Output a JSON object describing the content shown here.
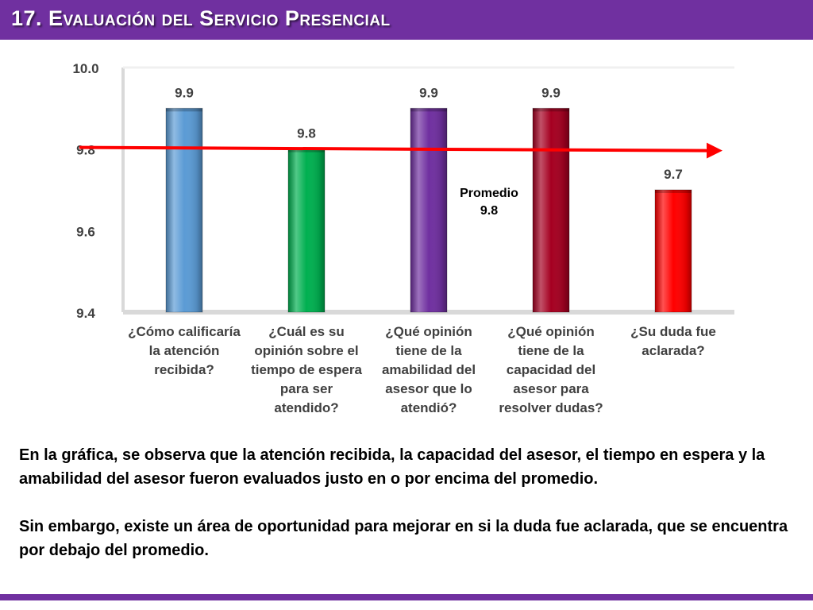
{
  "slide": {
    "title": "17. Evaluación del Servicio Presencial"
  },
  "chart_data": {
    "type": "bar",
    "title": "",
    "xlabel": "",
    "ylabel": "",
    "categories": [
      "¿Cómo calificaría la atención recibida?",
      "¿Cuál es su opinión sobre el tiempo de espera para ser atendido?",
      "¿Qué opinión tiene de la amabilidad del asesor que lo atendió?",
      "¿Qué opinión tiene de la capacidad del asesor para resolver dudas?",
      "¿Su duda fue aclarada?"
    ],
    "values": [
      9.9,
      9.8,
      9.9,
      9.9,
      9.7
    ],
    "data_labels": [
      "9.9",
      "9.8",
      "9.9",
      "9.9",
      "9.7"
    ],
    "bar_colors": [
      "#5b9bd5",
      "#00b050",
      "#7030a0",
      "#a50021",
      "#ff0000"
    ],
    "ylim": [
      9.4,
      10.0
    ],
    "yticks": [
      9.4,
      9.6,
      9.8,
      10.0
    ],
    "ytick_labels": [
      "9.4",
      "9.6",
      "9.8",
      "10.0"
    ],
    "grid": false,
    "legend": "none",
    "reference_line": {
      "value": 9.8,
      "color": "#ff0000",
      "label_line1": "Promedio",
      "label_line2": "9.8"
    }
  },
  "category_lines": [
    [
      "¿Cómo calificaría",
      "la atención",
      "recibida?"
    ],
    [
      "¿Cuál es su",
      "opinión sobre el",
      "tiempo de espera",
      "para ser",
      "atendido?"
    ],
    [
      "¿Qué opinión",
      "tiene de la",
      "amabilidad del",
      "asesor que lo",
      "atendió?"
    ],
    [
      "¿Qué opinión",
      "tiene de la",
      "capacidad del",
      "asesor para",
      "resolver dudas?"
    ],
    [
      "¿Su duda fue",
      "aclarada?"
    ]
  ],
  "body": {
    "paragraph1": "En la gráfica, se observa que la atención recibida, la capacidad del asesor, el tiempo en espera y la amabilidad del asesor fueron evaluados justo en o por encima del promedio.",
    "paragraph2": "Sin embargo, existe un área de oportunidad para mejorar en si la duda fue aclarada, que se encuentra por debajo del promedio."
  },
  "theme": {
    "accent": "#7030a0"
  }
}
